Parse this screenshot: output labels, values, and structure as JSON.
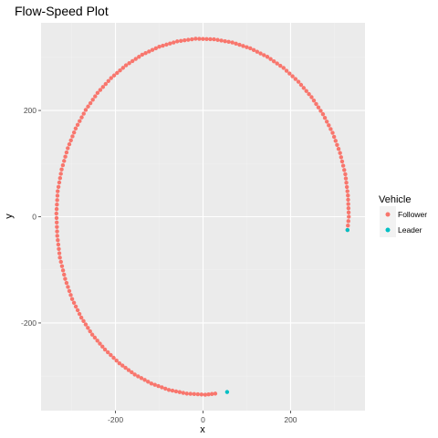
{
  "chart_data": {
    "type": "scatter",
    "title": "Flow-Speed Plot",
    "xlabel": "x",
    "ylabel": "y",
    "xlim": [
      -370,
      370
    ],
    "ylim": [
      -365,
      365
    ],
    "xticks": [
      -200,
      0,
      200
    ],
    "yticks": [
      -200,
      0,
      200
    ],
    "grid": true,
    "legend": {
      "title": "Vehicle",
      "placement": "right",
      "entries": [
        {
          "label": "Follower",
          "color": "#F8766D"
        },
        {
          "label": "Leader",
          "color": "#00BFC4"
        }
      ]
    },
    "series": [
      {
        "name": "Follower",
        "color": "#F8766D",
        "shape": "circle path, radius ~335, from angle 0 to 270 deg (starts at (330,-25), ends near (0,-335))",
        "points_xy": [
          [
            330,
            -25
          ],
          [
            333,
            0
          ],
          [
            331,
            40
          ],
          [
            325,
            80
          ],
          [
            313,
            120
          ],
          [
            296,
            158
          ],
          [
            274,
            193
          ],
          [
            248,
            225
          ],
          [
            218,
            254
          ],
          [
            184,
            280
          ],
          [
            147,
            301
          ],
          [
            108,
            317
          ],
          [
            67,
            328
          ],
          [
            25,
            334
          ],
          [
            -17,
            335
          ],
          [
            -59,
            330
          ],
          [
            -100,
            320
          ],
          [
            -139,
            305
          ],
          [
            -176,
            285
          ],
          [
            -210,
            261
          ],
          [
            -241,
            233
          ],
          [
            -268,
            201
          ],
          [
            -291,
            166
          ],
          [
            -309,
            129
          ],
          [
            -323,
            89
          ],
          [
            -332,
            48
          ],
          [
            -335,
            6
          ],
          [
            -333,
            -36
          ],
          [
            -327,
            -77
          ],
          [
            -315,
            -117
          ],
          [
            -299,
            -155
          ],
          [
            -278,
            -190
          ],
          [
            -253,
            -222
          ],
          [
            -224,
            -250
          ],
          [
            -191,
            -276
          ],
          [
            -156,
            -297
          ],
          [
            -118,
            -314
          ],
          [
            -78,
            -326
          ],
          [
            -37,
            -333
          ],
          [
            5,
            -335
          ],
          [
            28,
            -333
          ]
        ]
      },
      {
        "name": "Leader",
        "color": "#00BFC4",
        "points_xy": [
          [
            55,
            -330
          ],
          [
            330,
            -25
          ]
        ]
      }
    ]
  }
}
